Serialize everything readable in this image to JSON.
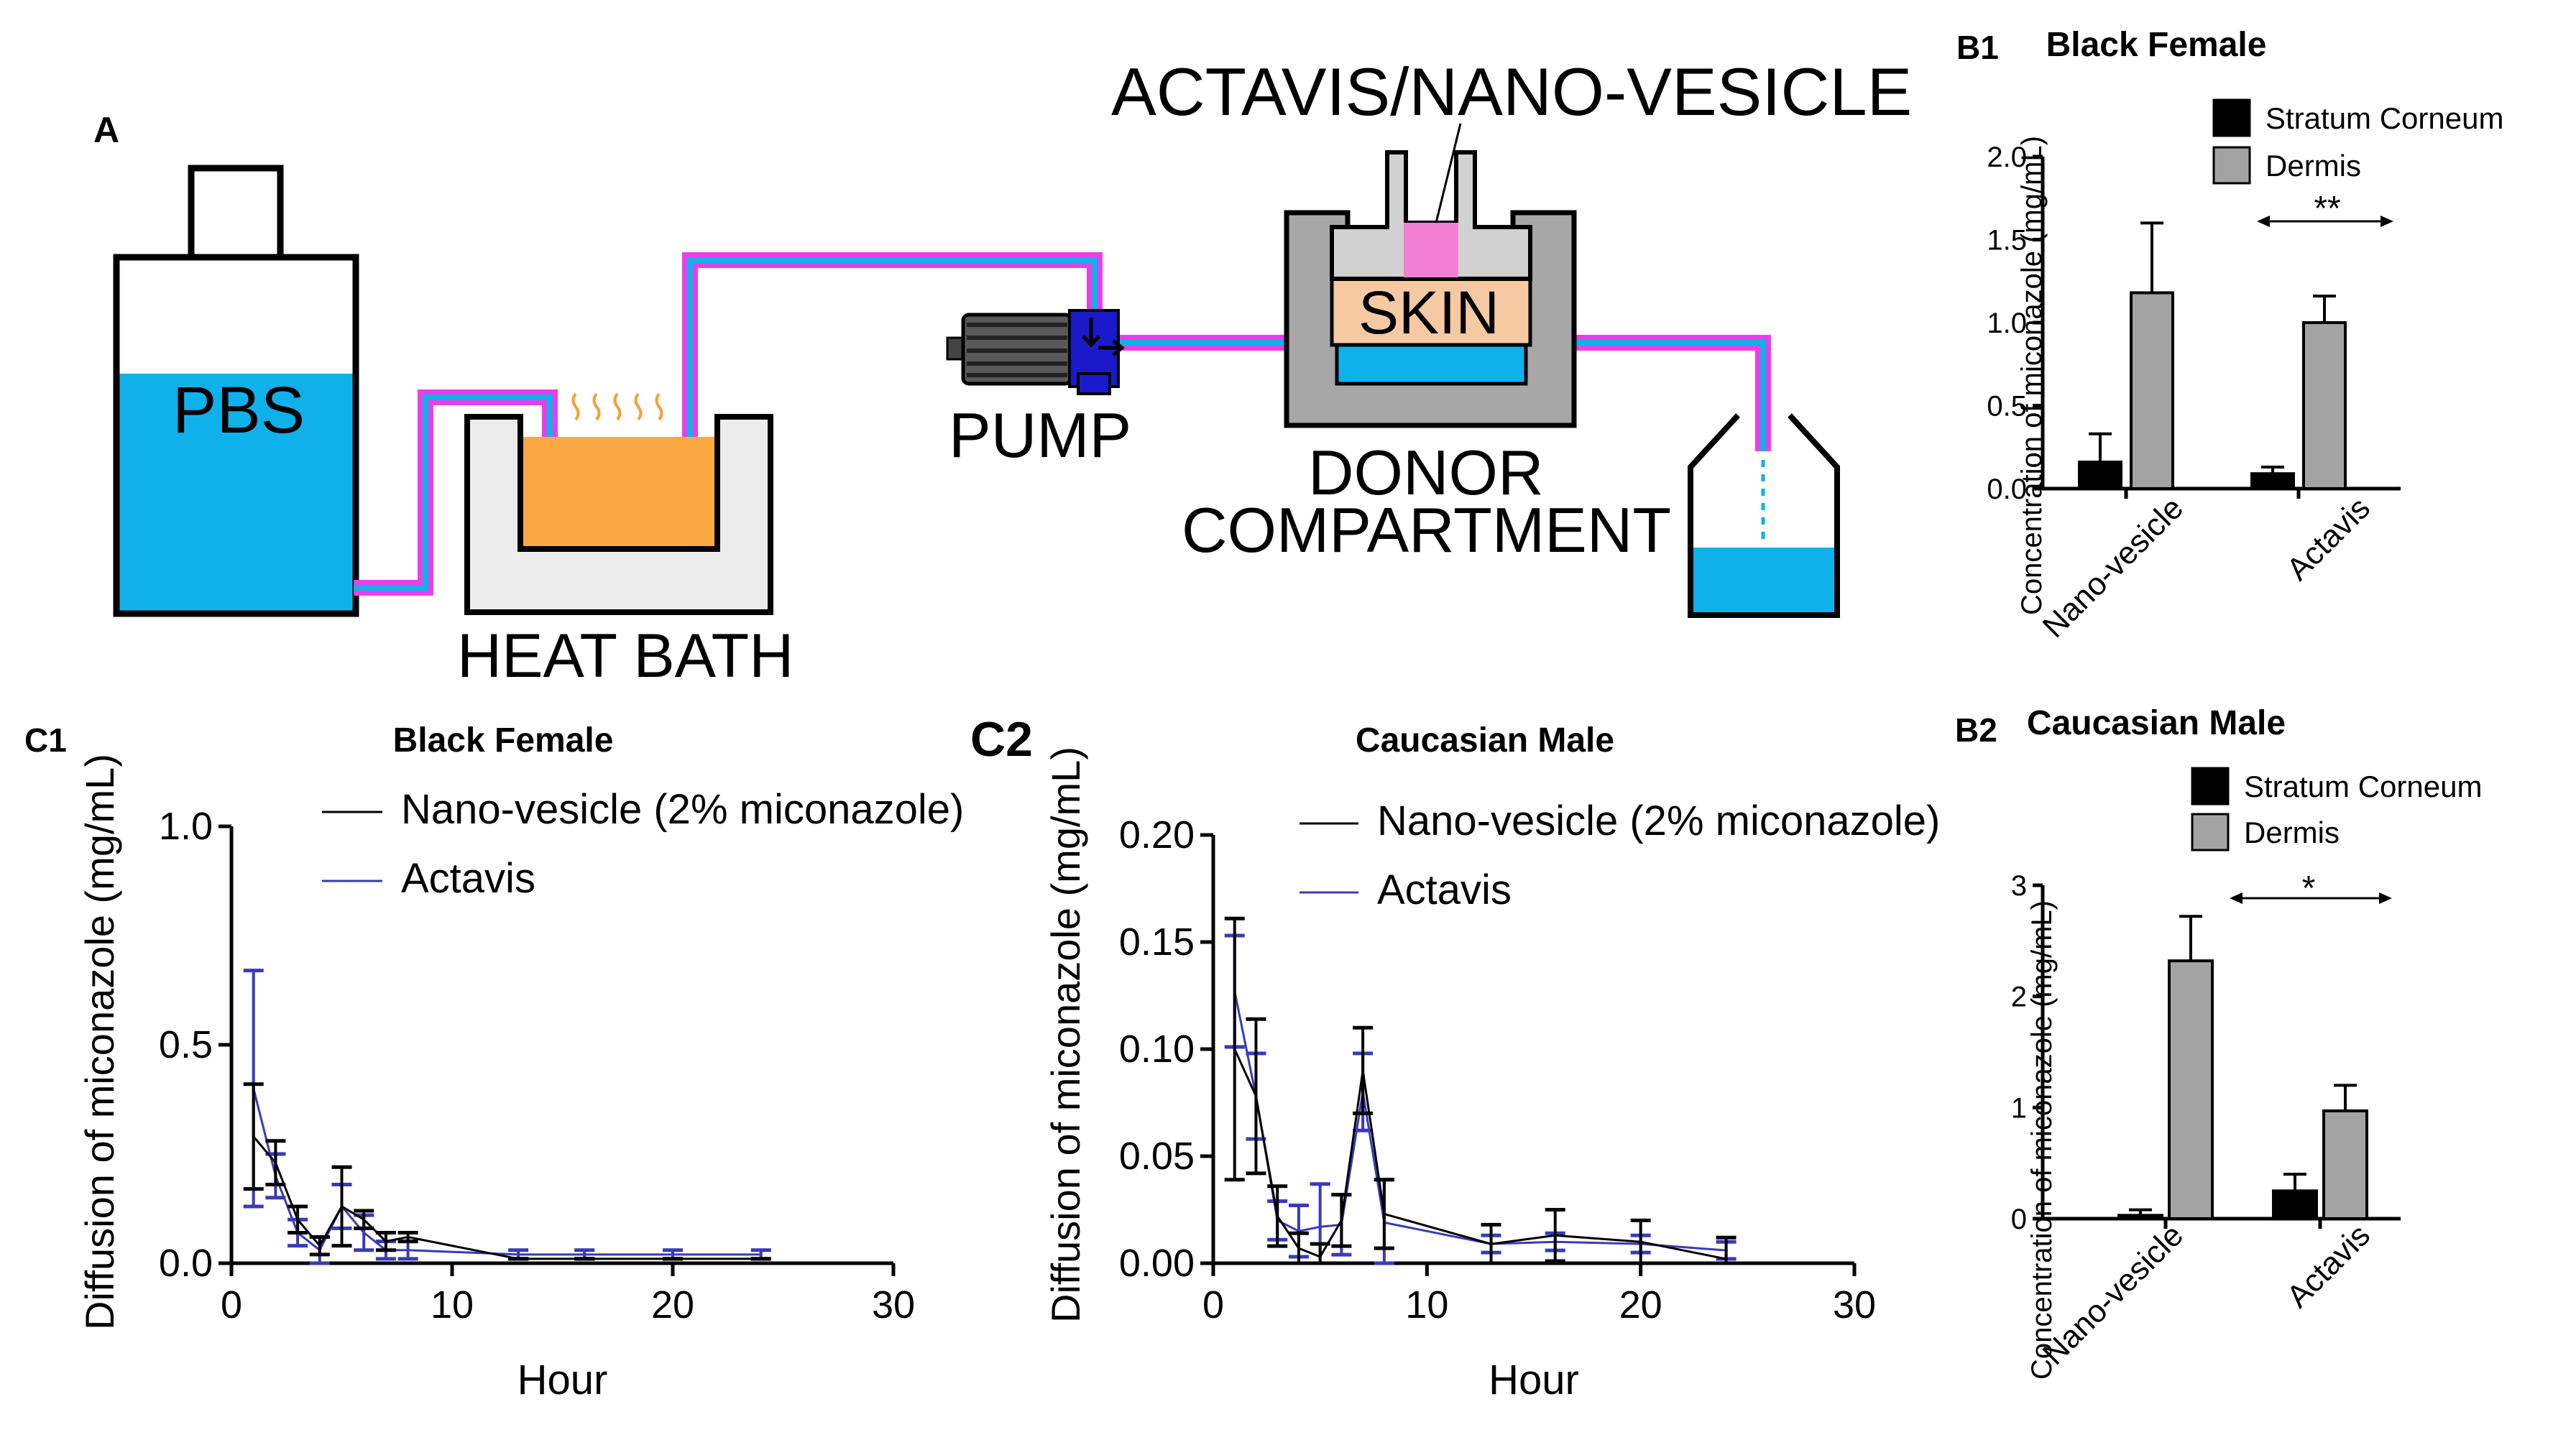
{
  "panel_labels": {
    "a": "A",
    "b1": "B1",
    "b2": "B2",
    "c1": "C1",
    "c2": "C2"
  },
  "diagram": {
    "title": "ACTAVIS/NANO-VESICLE",
    "pbs": "PBS",
    "heat_bath": "HEAT BATH",
    "pump": "PUMP",
    "skin": "SKIN",
    "donor_line1": "DONOR",
    "donor_line2": "COMPARTMENT",
    "colors": {
      "liquid": "#0fb1ea",
      "tube": "#ea3fe6",
      "heat": "#f9a842",
      "skin": "#f5c9a1",
      "drug": "#f37fd4",
      "pump": "#1a1acc",
      "wall": "#a7a7a7"
    }
  },
  "chart_data": [
    {
      "id": "B1",
      "type": "bar",
      "title": "Black Female",
      "ylabel": "Concentration of miconazole (mg/mL)",
      "categories": [
        "Nano-vesicle",
        "Actavis"
      ],
      "ylim": [
        0,
        2.0
      ],
      "yticks": [
        0,
        0.5,
        1.0,
        1.5,
        2.0
      ],
      "ytick_labels": [
        "0.0",
        "0.5",
        "1.0",
        "1.5",
        "2.0"
      ],
      "series": [
        {
          "name": "Stratum Corneum",
          "color": "#000000",
          "values": [
            0.16,
            0.09
          ],
          "errors": [
            0.17,
            0.04
          ]
        },
        {
          "name": "Dermis",
          "color": "#a3a3a3",
          "values": [
            1.18,
            1.0
          ],
          "errors": [
            0.42,
            0.16
          ]
        }
      ],
      "significance": "**"
    },
    {
      "id": "B2",
      "type": "bar",
      "title": "Caucasian Male",
      "ylabel": "Concentration of miconazole (mg/mL)",
      "categories": [
        "Nano-vesicle",
        "Actavis"
      ],
      "ylim": [
        0,
        3
      ],
      "yticks": [
        0,
        1,
        2,
        3
      ],
      "ytick_labels": [
        "0",
        "1",
        "2",
        "3"
      ],
      "series": [
        {
          "name": "Stratum Corneum",
          "color": "#000000",
          "values": [
            0.03,
            0.25
          ],
          "errors": [
            0.05,
            0.15
          ]
        },
        {
          "name": "Dermis",
          "color": "#a3a3a3",
          "values": [
            2.32,
            0.97
          ],
          "errors": [
            0.4,
            0.23
          ]
        }
      ],
      "significance": "*"
    },
    {
      "id": "C1",
      "type": "line",
      "title": "Black Female",
      "xlabel": "Hour",
      "ylabel": "Diffusion of miconazole (mg/mL)",
      "xlim": [
        0,
        30
      ],
      "ylim": [
        0,
        1.0
      ],
      "xticks": [
        0,
        10,
        20,
        30
      ],
      "xtick_labels": [
        "0",
        "10",
        "20",
        "30"
      ],
      "yticks": [
        0,
        0.5,
        1.0
      ],
      "ytick_labels": [
        "0.0",
        "0.5",
        "1.0"
      ],
      "series": [
        {
          "name": "Nano-vesicle (2% miconazole)",
          "color": "#000000",
          "x": [
            1,
            2,
            3,
            4,
            5,
            6,
            7,
            8,
            13,
            16,
            20,
            24
          ],
          "y": [
            0.29,
            0.23,
            0.1,
            0.04,
            0.13,
            0.1,
            0.05,
            0.06,
            0.01,
            0.01,
            0.01,
            0.01
          ],
          "err": [
            0.12,
            0.05,
            0.03,
            0.02,
            0.09,
            0.02,
            0.02,
            0.01,
            0.0,
            0.0,
            0.0,
            0.0
          ]
        },
        {
          "name": "Actavis",
          "color": "#3a3ab8",
          "x": [
            1,
            2,
            3,
            4,
            5,
            6,
            7,
            8,
            13,
            16,
            20,
            24
          ],
          "y": [
            0.4,
            0.2,
            0.07,
            0.03,
            0.13,
            0.07,
            0.03,
            0.03,
            0.02,
            0.02,
            0.02,
            0.02
          ],
          "err": [
            0.27,
            0.05,
            0.03,
            0.03,
            0.05,
            0.04,
            0.02,
            0.02,
            0.01,
            0.01,
            0.01,
            0.01
          ]
        }
      ]
    },
    {
      "id": "C2",
      "type": "line",
      "title": "Caucasian Male",
      "xlabel": "Hour",
      "ylabel": "Diffusion of miconazole (mg/mL)",
      "xlim": [
        0,
        30
      ],
      "ylim": [
        0,
        0.2
      ],
      "xticks": [
        0,
        10,
        20,
        30
      ],
      "xtick_labels": [
        "0",
        "10",
        "20",
        "30"
      ],
      "yticks": [
        0,
        0.05,
        0.1,
        0.15,
        0.2
      ],
      "ytick_labels": [
        "0.00",
        "0.05",
        "0.10",
        "0.15",
        "0.20"
      ],
      "series": [
        {
          "name": "Nano-vesicle (2% miconazole)",
          "color": "#000000",
          "x": [
            1,
            2,
            3,
            4,
            5,
            6,
            7,
            8,
            13,
            16,
            20,
            24
          ],
          "y": [
            0.1,
            0.078,
            0.022,
            0.007,
            0.003,
            0.02,
            0.09,
            0.023,
            0.009,
            0.013,
            0.01,
            0.002
          ],
          "err": [
            0.061,
            0.036,
            0.014,
            0.007,
            0.006,
            0.012,
            0.02,
            0.016,
            0.009,
            0.012,
            0.01,
            0.01
          ]
        },
        {
          "name": "Actavis",
          "color": "#3a3ab8",
          "x": [
            1,
            2,
            3,
            4,
            5,
            6,
            7,
            8,
            13,
            16,
            20,
            24
          ],
          "y": [
            0.127,
            0.078,
            0.02,
            0.015,
            0.017,
            0.018,
            0.08,
            0.019,
            0.009,
            0.01,
            0.009,
            0.006
          ],
          "err": [
            0.026,
            0.02,
            0.009,
            0.012,
            0.02,
            0.014,
            0.018,
            0.02,
            0.004,
            0.004,
            0.004,
            0.004
          ]
        }
      ]
    }
  ]
}
